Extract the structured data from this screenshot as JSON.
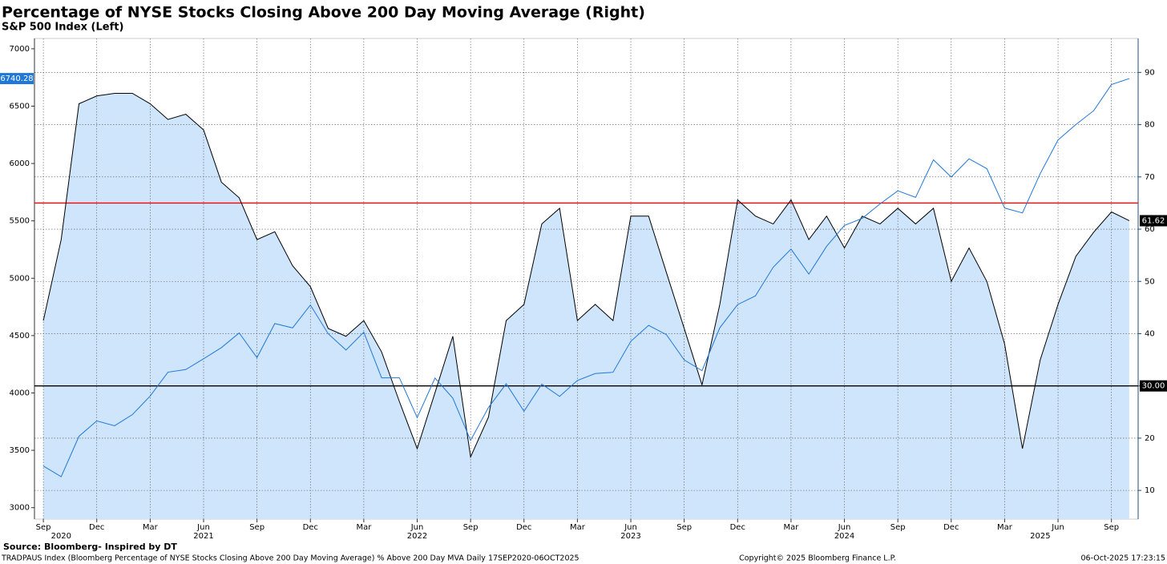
{
  "chart_data": {
    "type": "line",
    "title": "Percentage of NYSE Stocks Closing Above 200 Day Moving Average (Right)",
    "subtitle": "S&P 500 Index (Left)",
    "x": [
      "2020-09",
      "2020-10",
      "2020-11",
      "2020-12",
      "2021-01",
      "2021-02",
      "2021-03",
      "2021-04",
      "2021-05",
      "2021-06",
      "2021-07",
      "2021-08",
      "2021-09",
      "2021-10",
      "2021-11",
      "2021-12",
      "2022-01",
      "2022-02",
      "2022-03",
      "2022-04",
      "2022-05",
      "2022-06",
      "2022-07",
      "2022-08",
      "2022-09",
      "2022-10",
      "2022-11",
      "2022-12",
      "2023-01",
      "2023-02",
      "2023-03",
      "2023-04",
      "2023-05",
      "2023-06",
      "2023-07",
      "2023-08",
      "2023-09",
      "2023-10",
      "2023-11",
      "2023-12",
      "2024-01",
      "2024-02",
      "2024-03",
      "2024-04",
      "2024-05",
      "2024-06",
      "2024-07",
      "2024-08",
      "2024-09",
      "2024-10",
      "2024-11",
      "2024-12",
      "2025-01",
      "2025-02",
      "2025-03",
      "2025-04",
      "2025-05",
      "2025-06",
      "2025-07",
      "2025-08",
      "2025-09",
      "2025-10"
    ],
    "series": [
      {
        "axis": "y2",
        "color": "#000000",
        "fill": "#cfe5fb",
        "last_label": "61.62",
        "values": [
          42.5,
          58,
          84,
          85.5,
          86,
          86,
          84,
          81,
          82,
          79,
          69,
          66,
          58,
          59.5,
          53,
          49,
          41,
          39.5,
          42.5,
          36.5,
          27,
          18,
          28.7,
          39.5,
          16.4,
          24,
          42.5,
          45.6,
          61,
          64,
          42.5,
          45.6,
          42.5,
          62.5,
          62.5,
          51.7,
          41,
          30.2,
          45.6,
          65.6,
          62.5,
          61,
          65.6,
          58,
          62.5,
          56.4,
          62.5,
          61,
          64,
          61,
          64,
          50,
          56.4,
          50,
          38,
          18,
          35,
          45.6,
          54.8,
          59.4,
          63.3,
          61.62
        ]
      },
      {
        "axis": "y",
        "color": "#1f78d8",
        "last_label": "6740.28",
        "values": [
          3363,
          3270,
          3622,
          3756,
          3714,
          3811,
          3973,
          4181,
          4204,
          4298,
          4395,
          4523,
          4308,
          4605,
          4567,
          4766,
          4516,
          4374,
          4530,
          4132,
          4132,
          3785,
          4130,
          3955,
          3586,
          3872,
          4080,
          3840,
          4077,
          3970,
          4109,
          4169,
          4180,
          4450,
          4589,
          4508,
          4288,
          4194,
          4568,
          4770,
          4846,
          5096,
          5254,
          5036,
          5278,
          5460,
          5522,
          5648,
          5762,
          5705,
          6032,
          5882,
          6041,
          5955,
          5612,
          5569,
          5912,
          6205,
          6339,
          6460,
          6688,
          6740.28
        ]
      }
    ],
    "xlim": [
      "2020-09",
      "2025-10"
    ],
    "xticks": [
      {
        "value": "2020-09",
        "label": "Sep"
      },
      {
        "value": "2020-12",
        "label": "Dec"
      },
      {
        "value": "2021-03",
        "label": "Mar"
      },
      {
        "value": "2021-06",
        "label": "Jun"
      },
      {
        "value": "2021-09",
        "label": "Sep"
      },
      {
        "value": "2021-12",
        "label": "Dec"
      },
      {
        "value": "2022-03",
        "label": "Mar"
      },
      {
        "value": "2022-06",
        "label": "Jun"
      },
      {
        "value": "2022-09",
        "label": "Sep"
      },
      {
        "value": "2022-12",
        "label": "Dec"
      },
      {
        "value": "2023-03",
        "label": "Mar"
      },
      {
        "value": "2023-06",
        "label": "Jun"
      },
      {
        "value": "2023-09",
        "label": "Sep"
      },
      {
        "value": "2023-12",
        "label": "Dec"
      },
      {
        "value": "2024-03",
        "label": "Mar"
      },
      {
        "value": "2024-06",
        "label": "Jun"
      },
      {
        "value": "2024-09",
        "label": "Sep"
      },
      {
        "value": "2024-12",
        "label": "Dec"
      },
      {
        "value": "2025-03",
        "label": "Mar"
      },
      {
        "value": "2025-06",
        "label": "Jun"
      },
      {
        "value": "2025-09",
        "label": "Sep"
      }
    ],
    "year_labels": [
      {
        "value": "2020-10",
        "label": "2020"
      },
      {
        "value": "2021-06",
        "label": "2021"
      },
      {
        "value": "2022-06",
        "label": "2022"
      },
      {
        "value": "2023-06",
        "label": "2023"
      },
      {
        "value": "2024-06",
        "label": "2024"
      },
      {
        "value": "2025-05",
        "label": "2025"
      }
    ],
    "ylim": [
      2900,
      7090
    ],
    "yticks": [
      3000,
      3500,
      4000,
      4500,
      5000,
      5500,
      6000,
      6500,
      7000
    ],
    "y2lim": [
      4.5,
      96.5
    ],
    "y2ticks": [
      10,
      20,
      30,
      40,
      50,
      60,
      70,
      80,
      90
    ],
    "grid": "y2",
    "hlines": [
      {
        "axis": "y2",
        "value": 65,
        "color": "#ff0000"
      },
      {
        "axis": "y2",
        "value": 30,
        "color": "#000000",
        "label": "30.00"
      }
    ],
    "source": "Source: Bloomberg- Inspired by DT",
    "footer_left": "TRADPAUS Index (Bloomberg Percentage of NYSE Stocks Closing Above 200 Day Moving Average) % Above 200 Day MVA Daily 17SEP2020-06OCT2025",
    "footer_center": "Copyright© 2025 Bloomberg Finance L.P.",
    "footer_right": "06-Oct-2025 17:23:15"
  }
}
